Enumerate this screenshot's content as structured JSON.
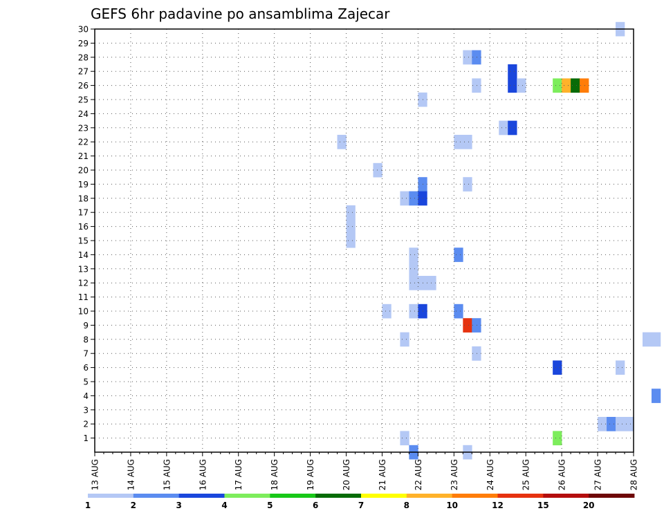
{
  "chart_data": {
    "type": "heatmap",
    "title": "GEFS 6hr padavine po ansamblima Zajecar",
    "xlabel": "",
    "ylabel": "",
    "x_tick_labels": [
      "13 AUG",
      "14 AUG",
      "15 AUG",
      "16 AUG",
      "17 AUG",
      "18 AUG",
      "19 AUG",
      "20 AUG",
      "21 AUG",
      "22 AUG",
      "23 AUG",
      "24 AUG",
      "25 AUG",
      "26 AUG",
      "27 AUG",
      "28 AUG"
    ],
    "x_step_hours": 6,
    "y_tick_labels": [
      "1",
      "2",
      "3",
      "4",
      "5",
      "6",
      "7",
      "8",
      "9",
      "10",
      "11",
      "12",
      "13",
      "14",
      "15",
      "16",
      "17",
      "18",
      "19",
      "20",
      "21",
      "22",
      "23",
      "24",
      "25",
      "26",
      "27",
      "28",
      "29",
      "30"
    ],
    "ylim": [
      0,
      30
    ],
    "grid": true,
    "colorbar": {
      "position": "bottom",
      "labels": [
        "1",
        "2",
        "3",
        "4",
        "5",
        "6",
        "7",
        "8",
        "10",
        "12",
        "15",
        "20"
      ],
      "colors": [
        "#b4c8f5",
        "#5b8cf0",
        "#1a46dc",
        "#7ded5c",
        "#18c818",
        "#076b07",
        "#ffff00",
        "#ffb22a",
        "#ff7d09",
        "#e6320f",
        "#b40e0e",
        "#6e0808"
      ]
    },
    "cells": [
      {
        "t": 58,
        "m": 30,
        "v": 1
      },
      {
        "t": 41,
        "m": 28,
        "v": 1
      },
      {
        "t": 42,
        "m": 28,
        "v": 2
      },
      {
        "t": 46,
        "m": 27,
        "v": 3
      },
      {
        "t": 42,
        "m": 26,
        "v": 1
      },
      {
        "t": 46,
        "m": 26,
        "v": 3
      },
      {
        "t": 47,
        "m": 26,
        "v": 1
      },
      {
        "t": 51,
        "m": 26,
        "v": 4
      },
      {
        "t": 52,
        "m": 26,
        "v": 8
      },
      {
        "t": 53,
        "m": 26,
        "v": 6
      },
      {
        "t": 54,
        "m": 26,
        "v": 10
      },
      {
        "t": 36,
        "m": 25,
        "v": 1
      },
      {
        "t": 72,
        "m": 25,
        "v": 1
      },
      {
        "t": 73,
        "m": 25,
        "v": 2
      },
      {
        "t": 74,
        "m": 25,
        "v": 1
      },
      {
        "t": 77,
        "m": 25,
        "v": 3
      },
      {
        "t": 78,
        "m": 25,
        "v": 1
      },
      {
        "t": 45,
        "m": 23,
        "v": 1
      },
      {
        "t": 46,
        "m": 23,
        "v": 3
      },
      {
        "t": 27,
        "m": 22,
        "v": 1
      },
      {
        "t": 40,
        "m": 22,
        "v": 1
      },
      {
        "t": 41,
        "m": 22,
        "v": 1
      },
      {
        "t": 31,
        "m": 20,
        "v": 1
      },
      {
        "t": 36,
        "m": 19,
        "v": 2
      },
      {
        "t": 41,
        "m": 19,
        "v": 1
      },
      {
        "t": 75,
        "m": 19,
        "v": 1
      },
      {
        "t": 76,
        "m": 19,
        "v": 7
      },
      {
        "t": 77,
        "m": 19,
        "v": 1
      },
      {
        "t": 34,
        "m": 18,
        "v": 1
      },
      {
        "t": 35,
        "m": 18,
        "v": 2
      },
      {
        "t": 36,
        "m": 18,
        "v": 3
      },
      {
        "t": 69,
        "m": 18,
        "v": 1
      },
      {
        "t": 71,
        "m": 18,
        "v": 1
      },
      {
        "t": 72,
        "m": 18,
        "v": 3
      },
      {
        "t": 79,
        "m": 18,
        "v": 1
      },
      {
        "t": 80,
        "m": 18,
        "v": 2
      },
      {
        "t": 28,
        "m": 16,
        "v": 1
      },
      {
        "t": 28,
        "m": 17,
        "v": 1
      },
      {
        "t": 28,
        "m": 15,
        "v": 1
      },
      {
        "t": 35,
        "m": 14,
        "v": 1
      },
      {
        "t": 40,
        "m": 14,
        "v": 2
      },
      {
        "t": 35,
        "m": 13,
        "v": 1
      },
      {
        "t": 68,
        "m": 13,
        "v": 1
      },
      {
        "t": 69,
        "m": 13,
        "v": 1
      },
      {
        "t": 70,
        "m": 13,
        "v": 1
      },
      {
        "t": 35,
        "m": 12,
        "v": 1
      },
      {
        "t": 36,
        "m": 12,
        "v": 1
      },
      {
        "t": 37,
        "m": 12,
        "v": 1
      },
      {
        "t": 32,
        "m": 10,
        "v": 1
      },
      {
        "t": 35,
        "m": 10,
        "v": 1
      },
      {
        "t": 36,
        "m": 10,
        "v": 3
      },
      {
        "t": 40,
        "m": 10,
        "v": 2
      },
      {
        "t": 80,
        "m": 10,
        "v": 8
      },
      {
        "t": 41,
        "m": 9,
        "v": 12
      },
      {
        "t": 42,
        "m": 9,
        "v": 2
      },
      {
        "t": 34,
        "m": 8,
        "v": 1
      },
      {
        "t": 61,
        "m": 8,
        "v": 1
      },
      {
        "t": 62,
        "m": 8,
        "v": 1
      },
      {
        "t": 76,
        "m": 8,
        "v": 1
      },
      {
        "t": 42,
        "m": 7,
        "v": 1
      },
      {
        "t": 51,
        "m": 6,
        "v": 3
      },
      {
        "t": 58,
        "m": 6,
        "v": 1
      },
      {
        "t": 62,
        "m": 4,
        "v": 2
      },
      {
        "t": 56,
        "m": 2,
        "v": 1
      },
      {
        "t": 57,
        "m": 2,
        "v": 2
      },
      {
        "t": 58,
        "m": 2,
        "v": 1
      },
      {
        "t": 59,
        "m": 2,
        "v": 1
      },
      {
        "t": 68,
        "m": 2,
        "v": 1
      },
      {
        "t": 34,
        "m": 1,
        "v": 1
      },
      {
        "t": 51,
        "m": 1,
        "v": 4
      },
      {
        "t": 35,
        "m": 0,
        "v": 2
      },
      {
        "t": 41,
        "m": 0,
        "v": 1
      }
    ]
  }
}
